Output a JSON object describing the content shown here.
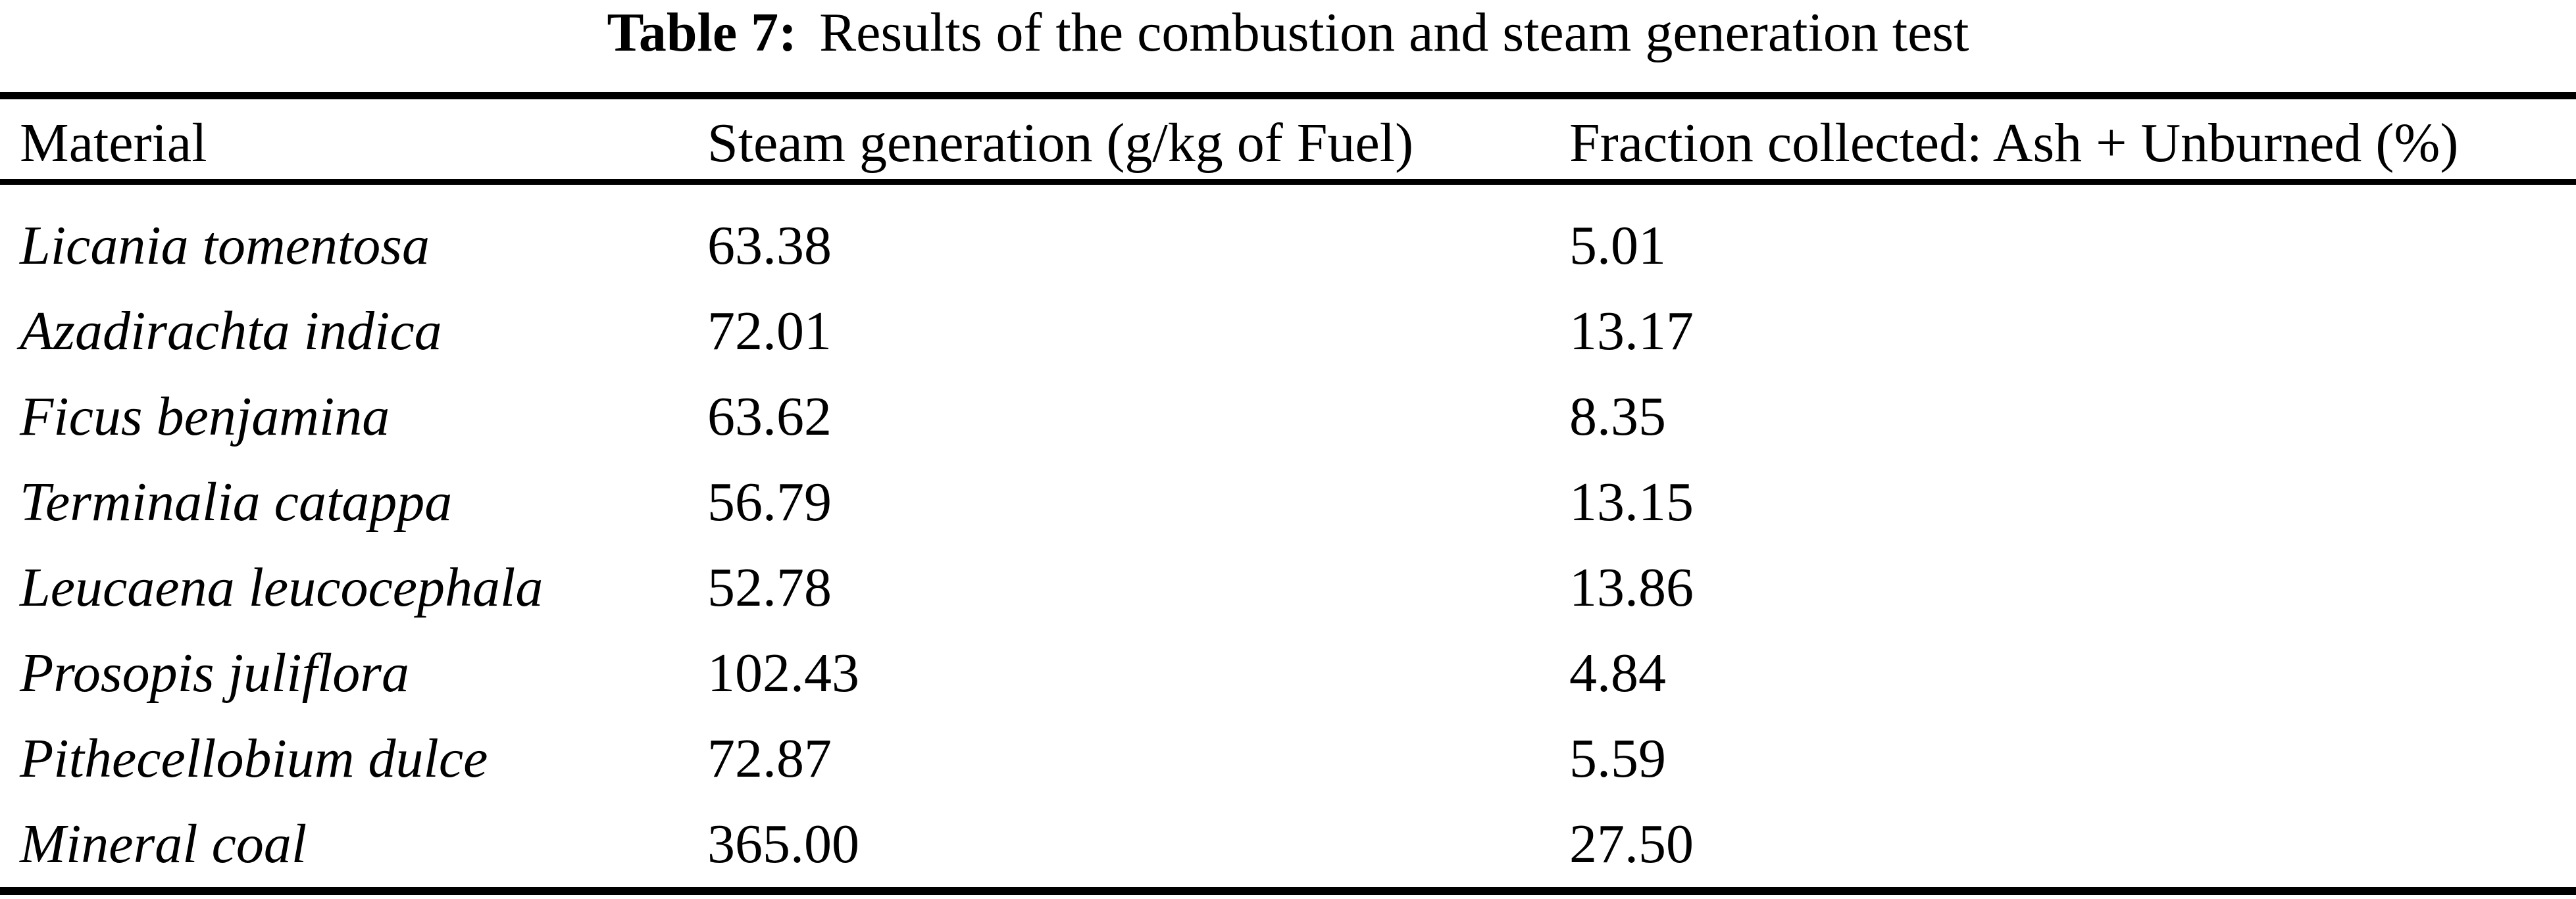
{
  "title": {
    "prefix": "Table 7:",
    "text": "Results of the combustion and steam generation test"
  },
  "table": {
    "headers": [
      "Material",
      "Steam generation (g/kg of Fuel)",
      "Fraction collected: Ash + Unburned (%)"
    ],
    "rows": [
      {
        "material": "Licania tomentosa",
        "steam": "63.38",
        "fraction": "5.01"
      },
      {
        "material": "Azadirachta indica",
        "steam": "72.01",
        "fraction": "13.17"
      },
      {
        "material": "Ficus benjamina",
        "steam": "63.62",
        "fraction": "8.35"
      },
      {
        "material": "Terminalia catappa",
        "steam": "56.79",
        "fraction": "13.15"
      },
      {
        "material": "Leucaena leucocephala",
        "steam": "52.78",
        "fraction": "13.86"
      },
      {
        "material": "Prosopis juliflora",
        "steam": "102.43",
        "fraction": "4.84"
      },
      {
        "material": "Pithecellobium dulce",
        "steam": "72.87",
        "fraction": "5.59"
      },
      {
        "material": "Mineral coal",
        "steam": "365.00",
        "fraction": "27.50"
      }
    ]
  },
  "chart_data": {
    "type": "table",
    "title": "Table 7: Results of the combustion and steam generation test",
    "columns": [
      "Material",
      "Steam generation (g/kg of Fuel)",
      "Fraction collected: Ash + Unburned (%)"
    ],
    "rows": [
      [
        "Licania tomentosa",
        63.38,
        5.01
      ],
      [
        "Azadirachta indica",
        72.01,
        13.17
      ],
      [
        "Ficus benjamina",
        63.62,
        8.35
      ],
      [
        "Terminalia catappa",
        56.79,
        13.15
      ],
      [
        "Leucaena leucocephala",
        52.78,
        13.86
      ],
      [
        "Prosopis juliflora",
        102.43,
        4.84
      ],
      [
        "Pithecellobium dulce",
        72.87,
        5.59
      ],
      [
        "Mineral coal",
        365.0,
        27.5
      ]
    ]
  },
  "colors": {
    "text": "#000000",
    "background": "#ffffff",
    "rule": "#000000"
  }
}
